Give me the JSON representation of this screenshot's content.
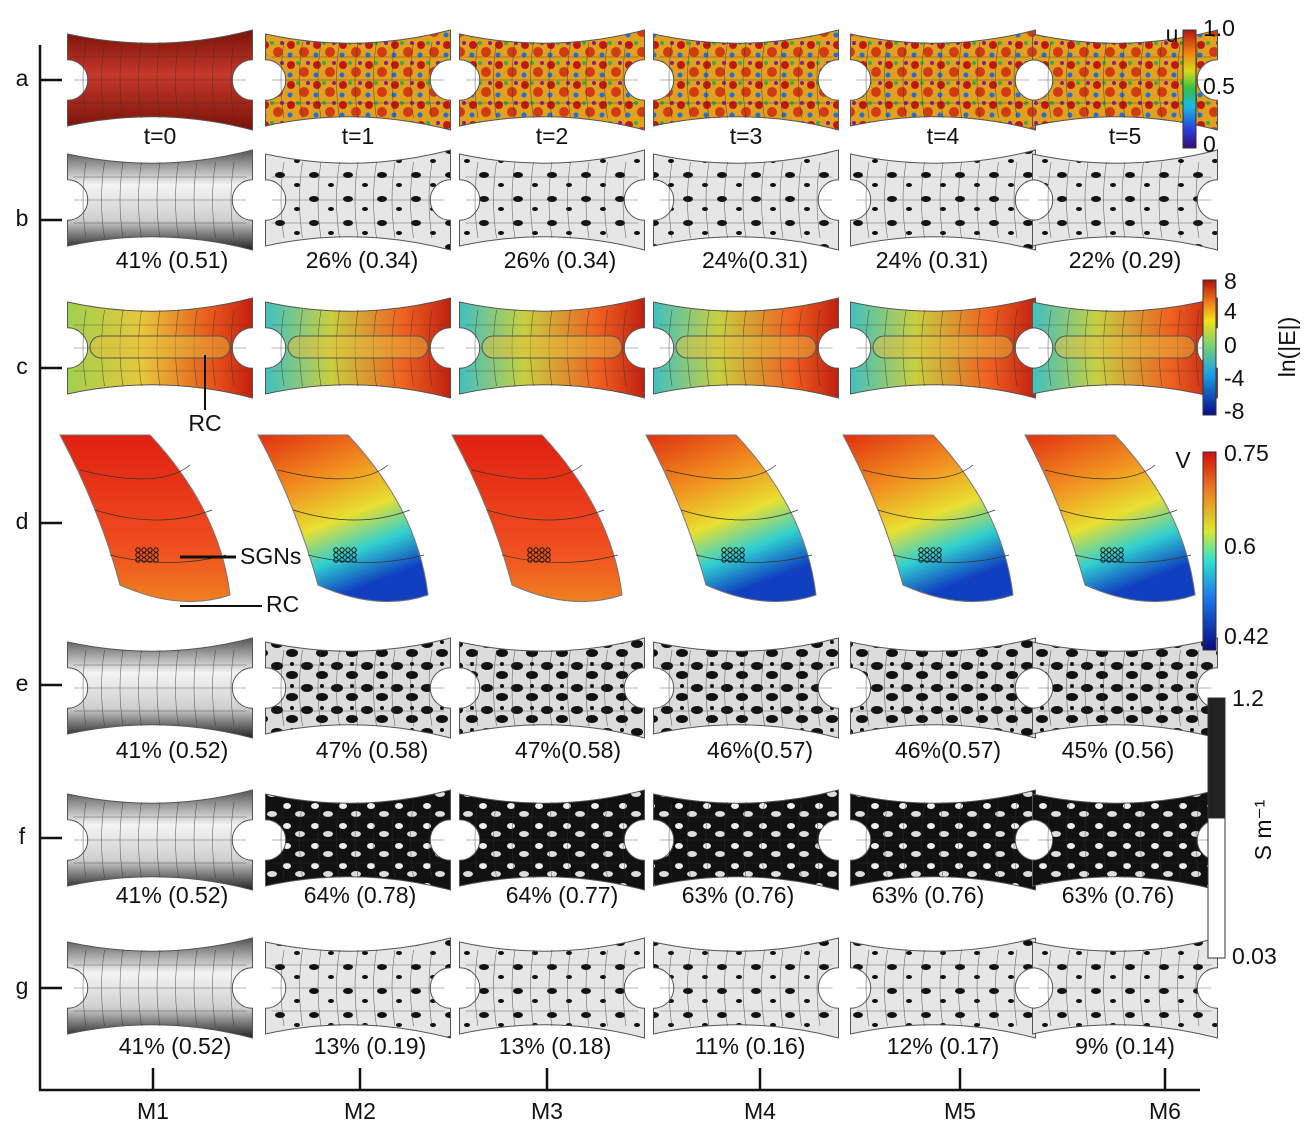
{
  "rows": [
    "a",
    "b",
    "c",
    "d",
    "e",
    "f",
    "g"
  ],
  "columns": [
    "M1",
    "M2",
    "M3",
    "M4",
    "M5",
    "M6"
  ],
  "time_labels": [
    "t=0",
    "t=1",
    "t=2",
    "t=3",
    "t=4",
    "t=5"
  ],
  "row_values": {
    "b": [
      "41% (0.51)",
      "26% (0.34)",
      "26% (0.34)",
      "24%(0.31)",
      "24% (0.31)",
      "22% (0.29)"
    ],
    "e": [
      "41% (0.52)",
      "47% (0.58)",
      "47%(0.58)",
      "46%(0.57)",
      "46%(0.57)",
      "45% (0.56)"
    ],
    "f": [
      "41% (0.52)",
      "64% (0.78)",
      "64% (0.77)",
      "63% (0.76)",
      "63% (0.76)",
      "63% (0.76)"
    ],
    "g": [
      "41% (0.52)",
      "13% (0.19)",
      "13% (0.18)",
      "11% (0.16)",
      "12% (0.17)",
      "9% (0.14)"
    ]
  },
  "annotations": {
    "c_rc": "RC",
    "d_sgns": "SGNs",
    "d_rc": "RC"
  },
  "colorbars": [
    {
      "title": "u",
      "ticks": [
        "1.0",
        "0.5",
        "0"
      ]
    },
    {
      "title": "ln(|E|)",
      "ticks": [
        "8",
        "4",
        "0",
        "-4",
        "-8"
      ]
    },
    {
      "title": "V",
      "ticks": [
        "0.75",
        "0.6",
        "0.42"
      ]
    },
    {
      "title": "S m⁻¹",
      "ticks": [
        "1.2",
        "0.03"
      ]
    }
  ]
}
